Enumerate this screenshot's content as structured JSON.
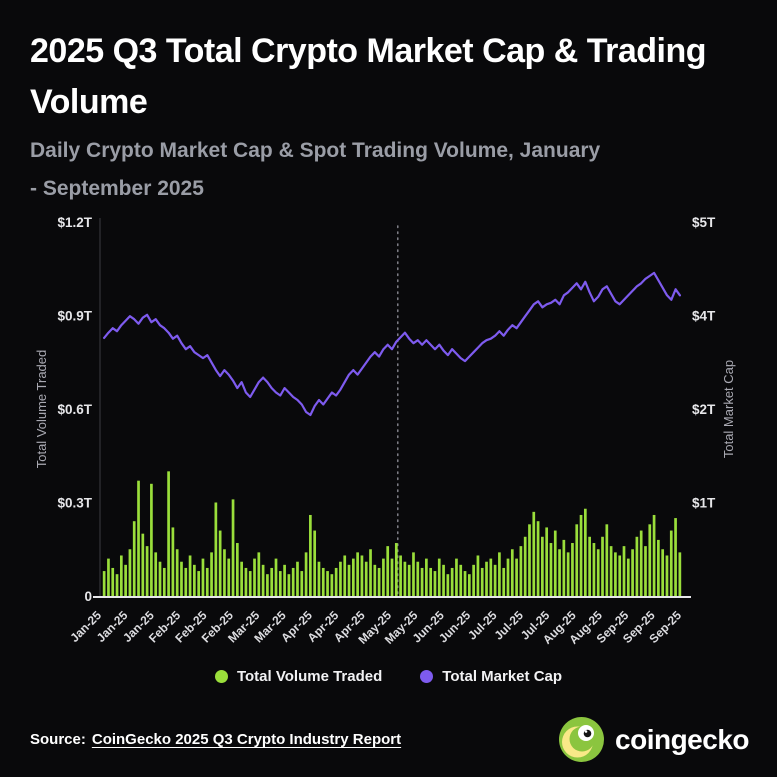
{
  "header": {
    "title": "2025 Q3 Total Crypto Market Cap & Trading Volume",
    "subtitle": "Daily Crypto Market Cap & Spot Trading Volume, January - September 2025"
  },
  "legend": {
    "items": [
      {
        "label": "Total Volume Traded",
        "color": "#9ade3b"
      },
      {
        "label": "Total Market Cap",
        "color": "#7e5bef"
      }
    ]
  },
  "footer": {
    "source_label": "Source:",
    "source_link": "CoinGecko 2025 Q3 Crypto Industry Report",
    "brand": "coingecko"
  },
  "colors": {
    "background": "#09090b",
    "bar": "#9ade3b",
    "line": "#7e5bef",
    "axis_text": "#e7e7ea",
    "muted_text": "#9a9da6",
    "logo_green": "#8bc53f",
    "logo_yellow": "#f9e988"
  },
  "chart_data": {
    "type": "combo",
    "title": "2025 Q3 Total Crypto Market Cap & Trading Volume",
    "subtitle": "Daily Crypto Market Cap & Spot Trading Volume, January - September 2025",
    "x_tick_labels": [
      "Jan-25",
      "Jan-25",
      "Jan-25",
      "Feb-25",
      "Feb-25",
      "Feb-25",
      "Mar-25",
      "Mar-25",
      "Apr-25",
      "Apr-25",
      "Apr-25",
      "May-25",
      "May-25",
      "Jun-25",
      "Jun-25",
      "Jul-25",
      "Jul-25",
      "Jul-25",
      "Aug-25",
      "Aug-25",
      "Sep-25",
      "Sep-25",
      "Sep-25"
    ],
    "left_axis": {
      "title": "Total Volume Traded",
      "tick_labels": [
        "$1.2T",
        "$0.9T",
        "$0.6T",
        "$0.3T",
        "0"
      ],
      "range": [
        0,
        1.2
      ],
      "unit": "trillion USD"
    },
    "right_axis": {
      "title": "Total Market Cap",
      "tick_labels": [
        "$5T",
        "$4T",
        "$2T",
        "$1T"
      ],
      "range": [
        0,
        5
      ],
      "unit": "trillion USD"
    },
    "annotation_line": {
      "position": 0.51,
      "style": "dotted"
    },
    "series": [
      {
        "name": "Total Volume Traded",
        "type": "bar",
        "axis": "left",
        "color": "#9ade3b",
        "values": [
          0.08,
          0.12,
          0.09,
          0.07,
          0.13,
          0.1,
          0.15,
          0.24,
          0.37,
          0.2,
          0.16,
          0.36,
          0.14,
          0.11,
          0.09,
          0.4,
          0.22,
          0.15,
          0.11,
          0.09,
          0.13,
          0.1,
          0.08,
          0.12,
          0.09,
          0.14,
          0.3,
          0.21,
          0.15,
          0.12,
          0.31,
          0.17,
          0.11,
          0.09,
          0.08,
          0.12,
          0.14,
          0.1,
          0.07,
          0.09,
          0.12,
          0.08,
          0.1,
          0.07,
          0.09,
          0.11,
          0.08,
          0.14,
          0.26,
          0.21,
          0.11,
          0.09,
          0.08,
          0.07,
          0.09,
          0.11,
          0.13,
          0.1,
          0.12,
          0.14,
          0.13,
          0.11,
          0.15,
          0.1,
          0.09,
          0.12,
          0.16,
          0.12,
          0.17,
          0.13,
          0.11,
          0.1,
          0.14,
          0.11,
          0.09,
          0.12,
          0.09,
          0.08,
          0.12,
          0.1,
          0.07,
          0.09,
          0.12,
          0.1,
          0.08,
          0.07,
          0.1,
          0.13,
          0.09,
          0.11,
          0.12,
          0.1,
          0.14,
          0.09,
          0.12,
          0.15,
          0.12,
          0.16,
          0.19,
          0.23,
          0.27,
          0.24,
          0.19,
          0.22,
          0.17,
          0.21,
          0.15,
          0.18,
          0.14,
          0.17,
          0.23,
          0.26,
          0.28,
          0.19,
          0.17,
          0.15,
          0.19,
          0.23,
          0.16,
          0.14,
          0.13,
          0.16,
          0.12,
          0.15,
          0.19,
          0.21,
          0.16,
          0.23,
          0.26,
          0.18,
          0.15,
          0.13,
          0.21,
          0.25,
          0.14
        ]
      },
      {
        "name": "Total Market Cap",
        "type": "line",
        "axis": "right",
        "color": "#7e5bef",
        "values": [
          3.45,
          3.52,
          3.58,
          3.54,
          3.62,
          3.68,
          3.74,
          3.7,
          3.64,
          3.72,
          3.76,
          3.66,
          3.7,
          3.62,
          3.58,
          3.52,
          3.44,
          3.48,
          3.38,
          3.3,
          3.34,
          3.26,
          3.22,
          3.18,
          3.22,
          3.12,
          3.02,
          2.94,
          3.02,
          2.96,
          2.88,
          2.78,
          2.86,
          2.72,
          2.66,
          2.76,
          2.86,
          2.92,
          2.86,
          2.78,
          2.72,
          2.68,
          2.78,
          2.72,
          2.66,
          2.62,
          2.56,
          2.46,
          2.42,
          2.54,
          2.62,
          2.56,
          2.64,
          2.72,
          2.68,
          2.76,
          2.86,
          2.96,
          3.02,
          2.96,
          3.04,
          3.12,
          3.2,
          3.26,
          3.2,
          3.3,
          3.36,
          3.3,
          3.4,
          3.46,
          3.52,
          3.44,
          3.38,
          3.42,
          3.36,
          3.42,
          3.36,
          3.3,
          3.36,
          3.28,
          3.22,
          3.3,
          3.24,
          3.18,
          3.14,
          3.2,
          3.26,
          3.32,
          3.38,
          3.42,
          3.44,
          3.48,
          3.54,
          3.48,
          3.56,
          3.62,
          3.58,
          3.66,
          3.74,
          3.82,
          3.9,
          3.94,
          3.86,
          3.9,
          3.92,
          3.96,
          3.9,
          4.02,
          4.06,
          4.12,
          4.18,
          4.1,
          4.2,
          4.06,
          3.94,
          4.0,
          4.1,
          4.14,
          4.04,
          3.94,
          3.9,
          3.96,
          4.02,
          4.08,
          4.14,
          4.18,
          4.24,
          4.28,
          4.32,
          4.22,
          4.12,
          4.02,
          3.96,
          4.1,
          4.02
        ]
      }
    ]
  }
}
